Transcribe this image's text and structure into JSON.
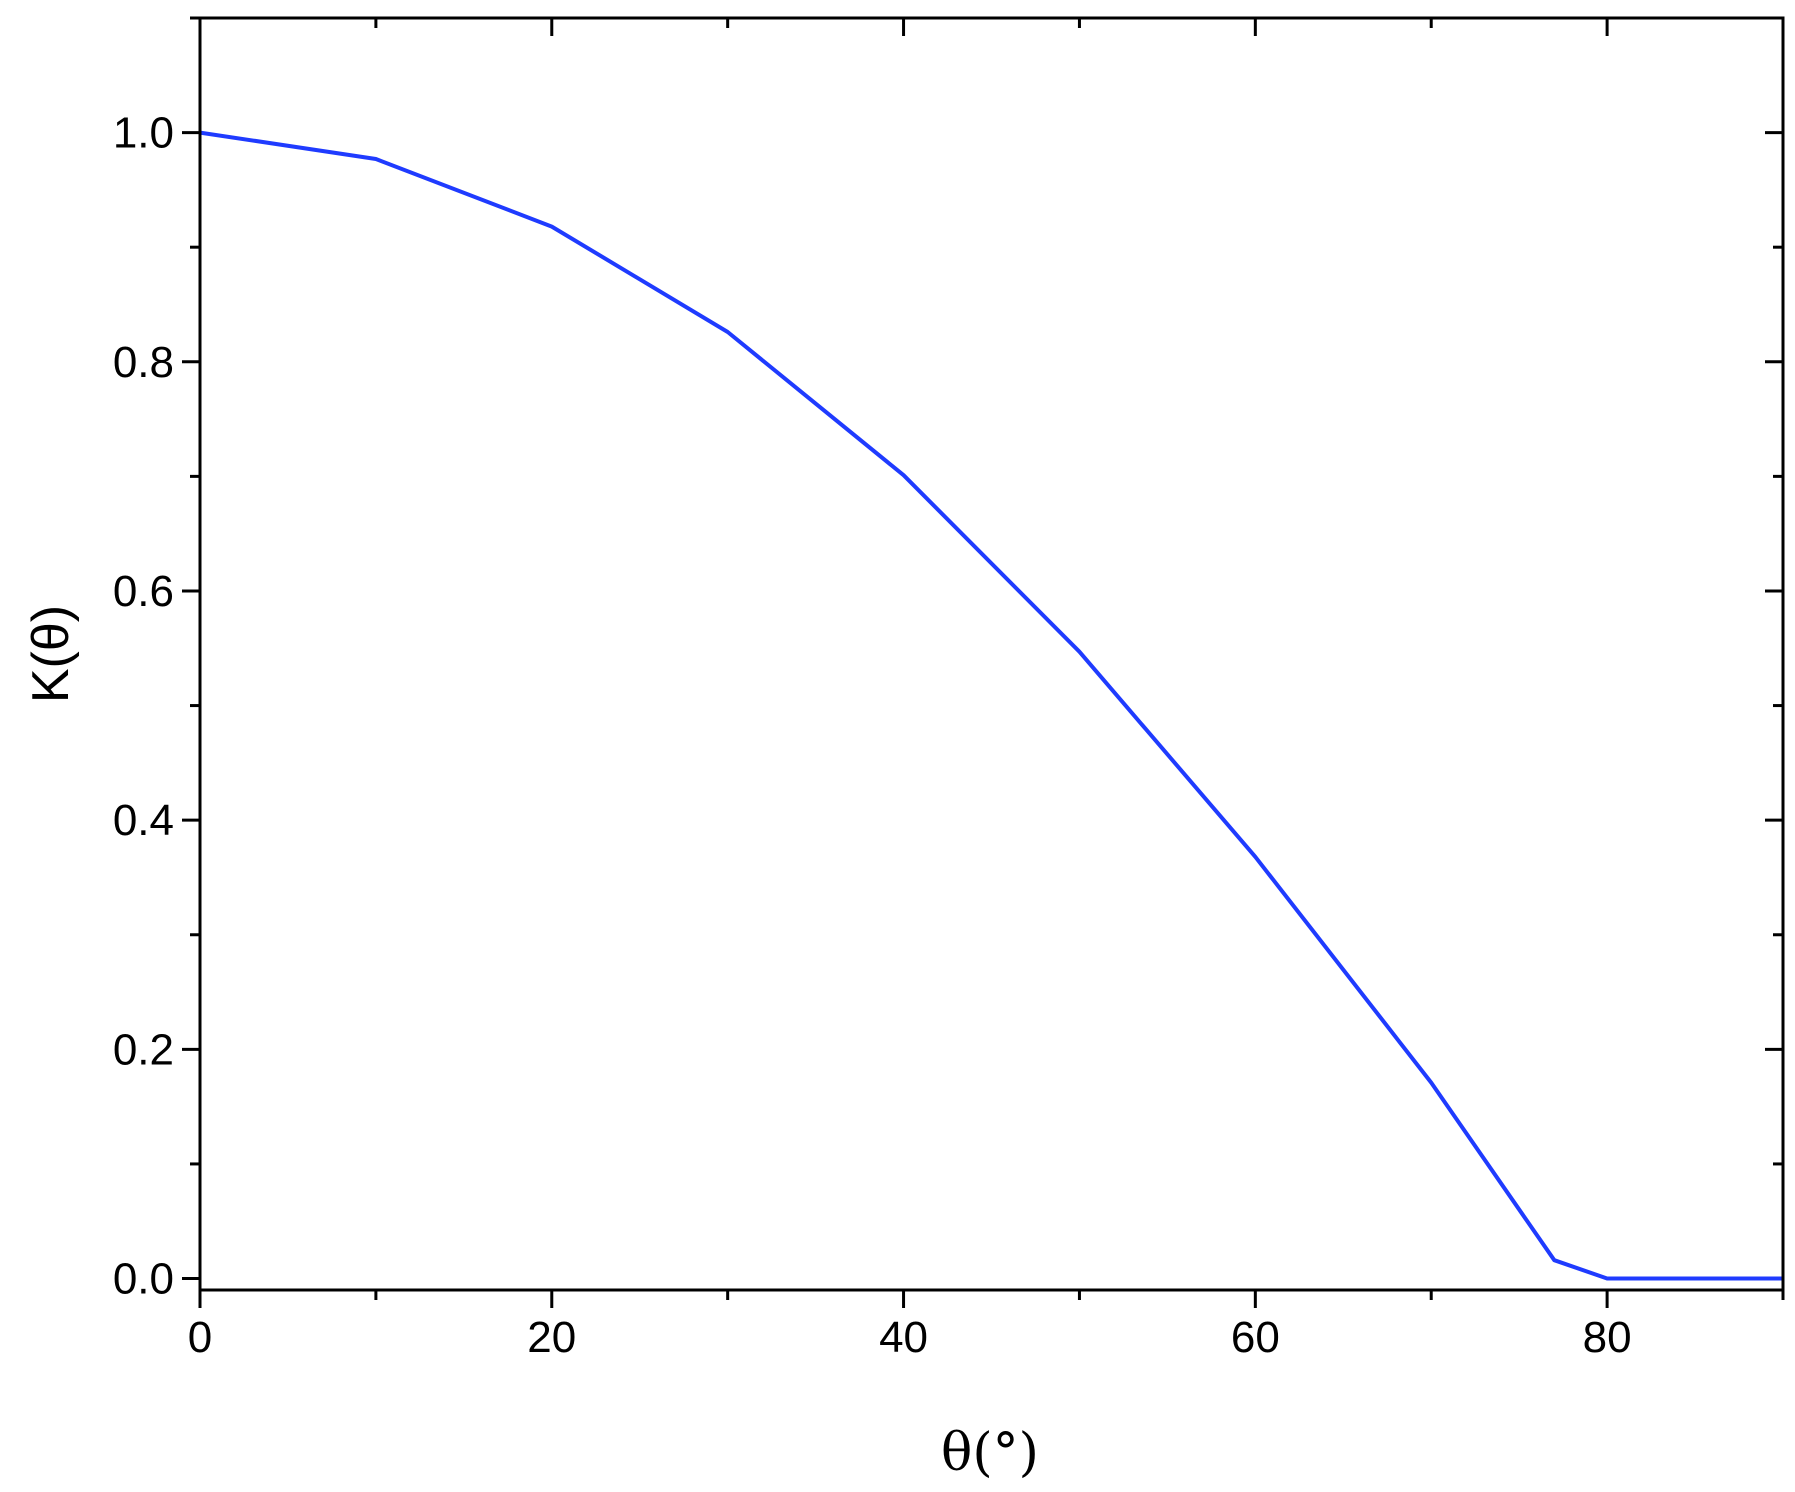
{
  "chart_data": {
    "type": "line",
    "title": "",
    "xlabel": "θ(°)",
    "ylabel": "K(θ)",
    "xlim": [
      0,
      90
    ],
    "ylim": [
      -0.01,
      1.1
    ],
    "xticks": [
      0,
      20,
      40,
      60,
      80
    ],
    "xtick_labels": [
      "0",
      "20",
      "40",
      "60",
      "80"
    ],
    "yticks": [
      0.0,
      0.2,
      0.4,
      0.6,
      0.8,
      1.0
    ],
    "ytick_labels": [
      "0.0",
      "0.2",
      "0.4",
      "0.6",
      "0.8",
      "1.0"
    ],
    "grid": false,
    "legend": "none",
    "series": [
      {
        "color": "#1f3bff",
        "x": [
          0,
          10,
          20,
          30,
          40,
          50,
          60,
          70,
          77,
          80,
          90
        ],
        "y": [
          1.0,
          0.977,
          0.918,
          0.826,
          0.701,
          0.547,
          0.368,
          0.171,
          0.016,
          0.0,
          0.0
        ]
      }
    ]
  }
}
